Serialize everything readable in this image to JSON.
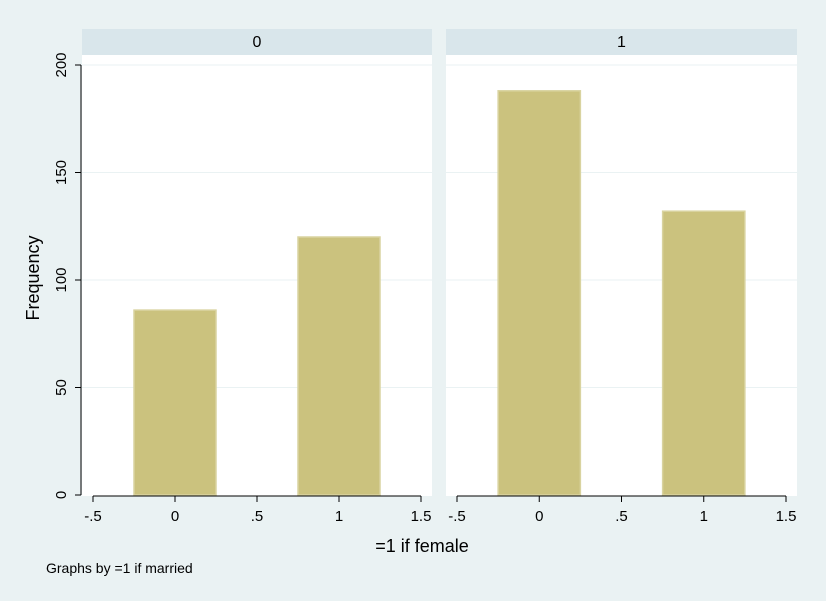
{
  "chart_data": {
    "type": "bar",
    "xlabel": "=1 if female",
    "ylabel": "Frequency",
    "note": "Graphs by =1 if married",
    "xlim": [
      -0.5,
      1.5
    ],
    "ylim": [
      0,
      200
    ],
    "xticks": [
      -0.5,
      0,
      0.5,
      1,
      1.5
    ],
    "xtick_labels": [
      "-.5",
      "0",
      ".5",
      "1",
      "1.5"
    ],
    "yticks": [
      0,
      50,
      100,
      150,
      200
    ],
    "ytick_labels": [
      "0",
      "50",
      "100",
      "150",
      "200"
    ],
    "bar_width": 0.5,
    "grid": true,
    "colors": {
      "bar": "#cbc27e",
      "bar_edge": "#d9d3a0",
      "background": "#eaf2f3",
      "plot": "#ffffff",
      "strip": "#d9e6eb",
      "grid": "#eaf2f3"
    },
    "panels": [
      {
        "title": "0",
        "categories": [
          0,
          1
        ],
        "values": [
          86,
          120
        ]
      },
      {
        "title": "1",
        "categories": [
          0,
          1
        ],
        "values": [
          188,
          132
        ]
      }
    ]
  }
}
